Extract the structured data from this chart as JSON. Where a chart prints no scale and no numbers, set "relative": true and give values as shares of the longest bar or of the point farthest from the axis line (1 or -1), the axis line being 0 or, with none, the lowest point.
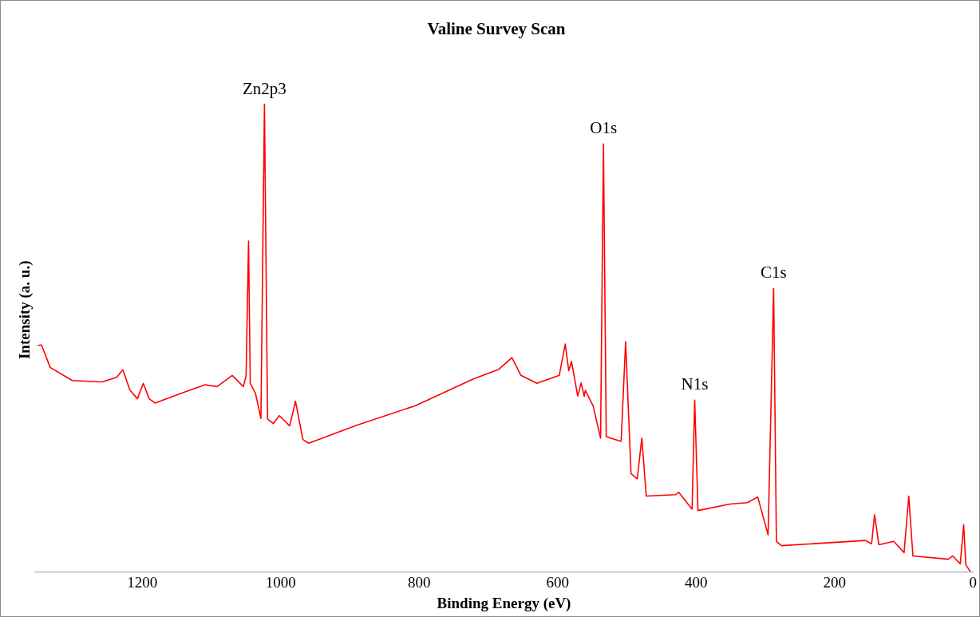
{
  "chart_data": {
    "type": "line",
    "title": "Valine Survey Scan",
    "xlabel": "Binding Energy (eV)",
    "ylabel": "Intensity (a. u.)",
    "relative": true,
    "xlim": [
      1355,
      0
    ],
    "xticks": [
      1200,
      1000,
      800,
      600,
      400,
      200,
      0
    ],
    "series": [
      {
        "color": "#ff0000",
        "x": [
          1351,
          1345.5,
          1333,
          1301,
          1258,
          1237,
          1228,
          1218,
          1207,
          1198.5,
          1190,
          1181.6,
          1143,
          1109,
          1092,
          1070,
          1054,
          1050,
          1046.5,
          1044,
          1036.5,
          1028.6,
          1023.5,
          1019,
          1010.7,
          1002,
          987,
          978.7,
          968,
          959.5,
          891,
          806,
          721,
          685,
          666,
          653,
          630,
          597.7,
          589,
          584,
          580,
          571,
          566,
          561.6,
          560,
          548.8,
          538,
          533.8,
          529.8,
          508.3,
          501.8,
          494,
          485,
          478.4,
          472,
          429.6,
          425,
          405.8,
          402,
          397.3,
          351,
          326,
          311,
          296,
          288,
          284,
          276.6,
          155.5,
          146.5,
          142.2,
          136,
          114.5,
          99.6,
          92.8,
          86.8,
          35.7,
          29.3,
          18.4,
          13.5,
          10.4,
          3.7
        ],
        "values": [
          0.484,
          0.485,
          0.437,
          0.409,
          0.406,
          0.416,
          0.432,
          0.389,
          0.37,
          0.403,
          0.37,
          0.361,
          0.382,
          0.4,
          0.396,
          0.42,
          0.396,
          0.42,
          0.707,
          0.403,
          0.382,
          0.328,
          1.0,
          0.327,
          0.317,
          0.334,
          0.312,
          0.365,
          0.283,
          0.275,
          0.313,
          0.355,
          0.413,
          0.433,
          0.458,
          0.42,
          0.403,
          0.42,
          0.487,
          0.43,
          0.45,
          0.376,
          0.404,
          0.375,
          0.388,
          0.355,
          0.286,
          0.915,
          0.289,
          0.279,
          0.492,
          0.21,
          0.199,
          0.286,
          0.162,
          0.165,
          0.17,
          0.134,
          0.367,
          0.131,
          0.145,
          0.148,
          0.16,
          0.079,
          0.606,
          0.065,
          0.056,
          0.067,
          0.06,
          0.122,
          0.058,
          0.065,
          0.041,
          0.162,
          0.034,
          0.027,
          0.034,
          0.017,
          0.101,
          0.015,
          0.0
        ]
      }
    ],
    "annotations": [
      {
        "text": "Zn2p3",
        "x": 1023.5,
        "y": 1.0
      },
      {
        "text": "O1s",
        "x": 533.8,
        "y": 0.915
      },
      {
        "text": "N1s",
        "x": 402,
        "y": 0.367
      },
      {
        "text": "C1s",
        "x": 288,
        "y": 0.606
      }
    ]
  }
}
